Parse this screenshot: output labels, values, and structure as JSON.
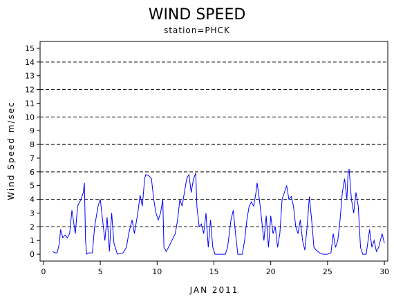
{
  "chart_data": {
    "type": "line",
    "title": "WIND SPEED",
    "subtitle": "station=PHCK",
    "x_label": "JAN 2011",
    "y_label": "Wind Speed m/sec",
    "x": [
      0.8,
      1.0,
      1.2,
      1.4,
      1.5,
      1.7,
      1.9,
      2.1,
      2.3,
      2.5,
      2.8,
      3.0,
      3.3,
      3.5,
      3.6,
      3.7,
      3.8,
      4.0,
      4.3,
      4.5,
      4.8,
      5.0,
      5.2,
      5.4,
      5.6,
      5.8,
      6.0,
      6.2,
      6.5,
      7.0,
      7.3,
      7.5,
      7.8,
      8.0,
      8.3,
      8.5,
      8.7,
      8.9,
      9.0,
      9.3,
      9.5,
      9.7,
      9.9,
      10.1,
      10.3,
      10.5,
      10.6,
      10.8,
      11.0,
      11.3,
      11.6,
      11.8,
      12.0,
      12.2,
      12.4,
      12.6,
      12.8,
      13.0,
      13.2,
      13.4,
      13.5,
      13.7,
      13.9,
      14.1,
      14.3,
      14.5,
      14.7,
      14.9,
      15.1,
      15.5,
      16.0,
      16.2,
      16.5,
      16.7,
      16.9,
      17.1,
      17.5,
      17.7,
      17.9,
      18.1,
      18.3,
      18.5,
      18.7,
      18.8,
      19.0,
      19.2,
      19.4,
      19.6,
      19.8,
      20.0,
      20.2,
      20.4,
      20.6,
      20.8,
      21.0,
      21.2,
      21.4,
      21.6,
      21.8,
      22.0,
      22.2,
      22.4,
      22.6,
      22.8,
      23.0,
      23.2,
      23.4,
      23.6,
      23.8,
      24.0,
      24.3,
      24.6,
      25.0,
      25.3,
      25.5,
      25.7,
      25.9,
      26.1,
      26.3,
      26.5,
      26.7,
      26.8,
      26.9,
      27.1,
      27.3,
      27.5,
      27.7,
      27.9,
      28.1,
      28.4,
      28.7,
      28.9,
      29.1,
      29.3,
      29.5,
      29.8,
      30.0
    ],
    "series": [
      {
        "color": "#0000ff",
        "values": [
          0.2,
          0.1,
          0.1,
          0.8,
          1.8,
          1.2,
          1.4,
          1.2,
          1.5,
          3.2,
          1.5,
          3.5,
          4.0,
          4.5,
          5.2,
          1.0,
          0,
          0.1,
          0.1,
          2.0,
          3.5,
          4.0,
          2.5,
          1.0,
          2.7,
          0.2,
          3.0,
          0.8,
          0,
          0.1,
          0.5,
          1.5,
          2.5,
          1.5,
          3.0,
          4.3,
          3.5,
          5.5,
          5.8,
          5.7,
          5.5,
          4.0,
          3.0,
          2.5,
          3.0,
          4.0,
          0.5,
          0.2,
          0.5,
          1.0,
          1.5,
          2.5,
          4.0,
          3.5,
          4.5,
          5.5,
          5.8,
          4.5,
          5.5,
          5.9,
          3.5,
          2.0,
          2.2,
          1.5,
          3.0,
          0.5,
          2.5,
          0.5,
          0,
          0,
          0,
          0.5,
          2.5,
          3.2,
          1.5,
          0,
          0,
          1.0,
          2.5,
          3.5,
          3.8,
          3.5,
          4.5,
          5.2,
          4.0,
          2.5,
          1.0,
          2.8,
          0.5,
          2.8,
          1.5,
          2.0,
          0.5,
          1.5,
          4.0,
          4.5,
          5.0,
          4.0,
          4.2,
          3.5,
          2.0,
          1.5,
          2.5,
          1.0,
          0.3,
          2.0,
          4.2,
          2.5,
          0.5,
          0.3,
          0.1,
          0,
          0,
          0.1,
          1.5,
          0.5,
          1.0,
          2.5,
          4.5,
          5.5,
          4.0,
          5.8,
          6.2,
          4.0,
          3.0,
          4.5,
          3.5,
          0.5,
          0,
          0,
          1.8,
          0.5,
          1.0,
          0.2,
          0.5,
          1.5,
          0.8
        ]
      }
    ],
    "xlim": [
      -0.3,
      30.3
    ],
    "xticks": [
      0,
      5,
      10,
      15,
      20,
      25,
      30
    ],
    "ylim": [
      -0.5,
      15.5
    ],
    "yticks": [
      0,
      1,
      2,
      3,
      4,
      5,
      6,
      7,
      8,
      9,
      10,
      11,
      12,
      13,
      14,
      15
    ],
    "grid_lines": [
      2,
      4,
      6,
      8,
      10,
      12,
      14
    ]
  }
}
